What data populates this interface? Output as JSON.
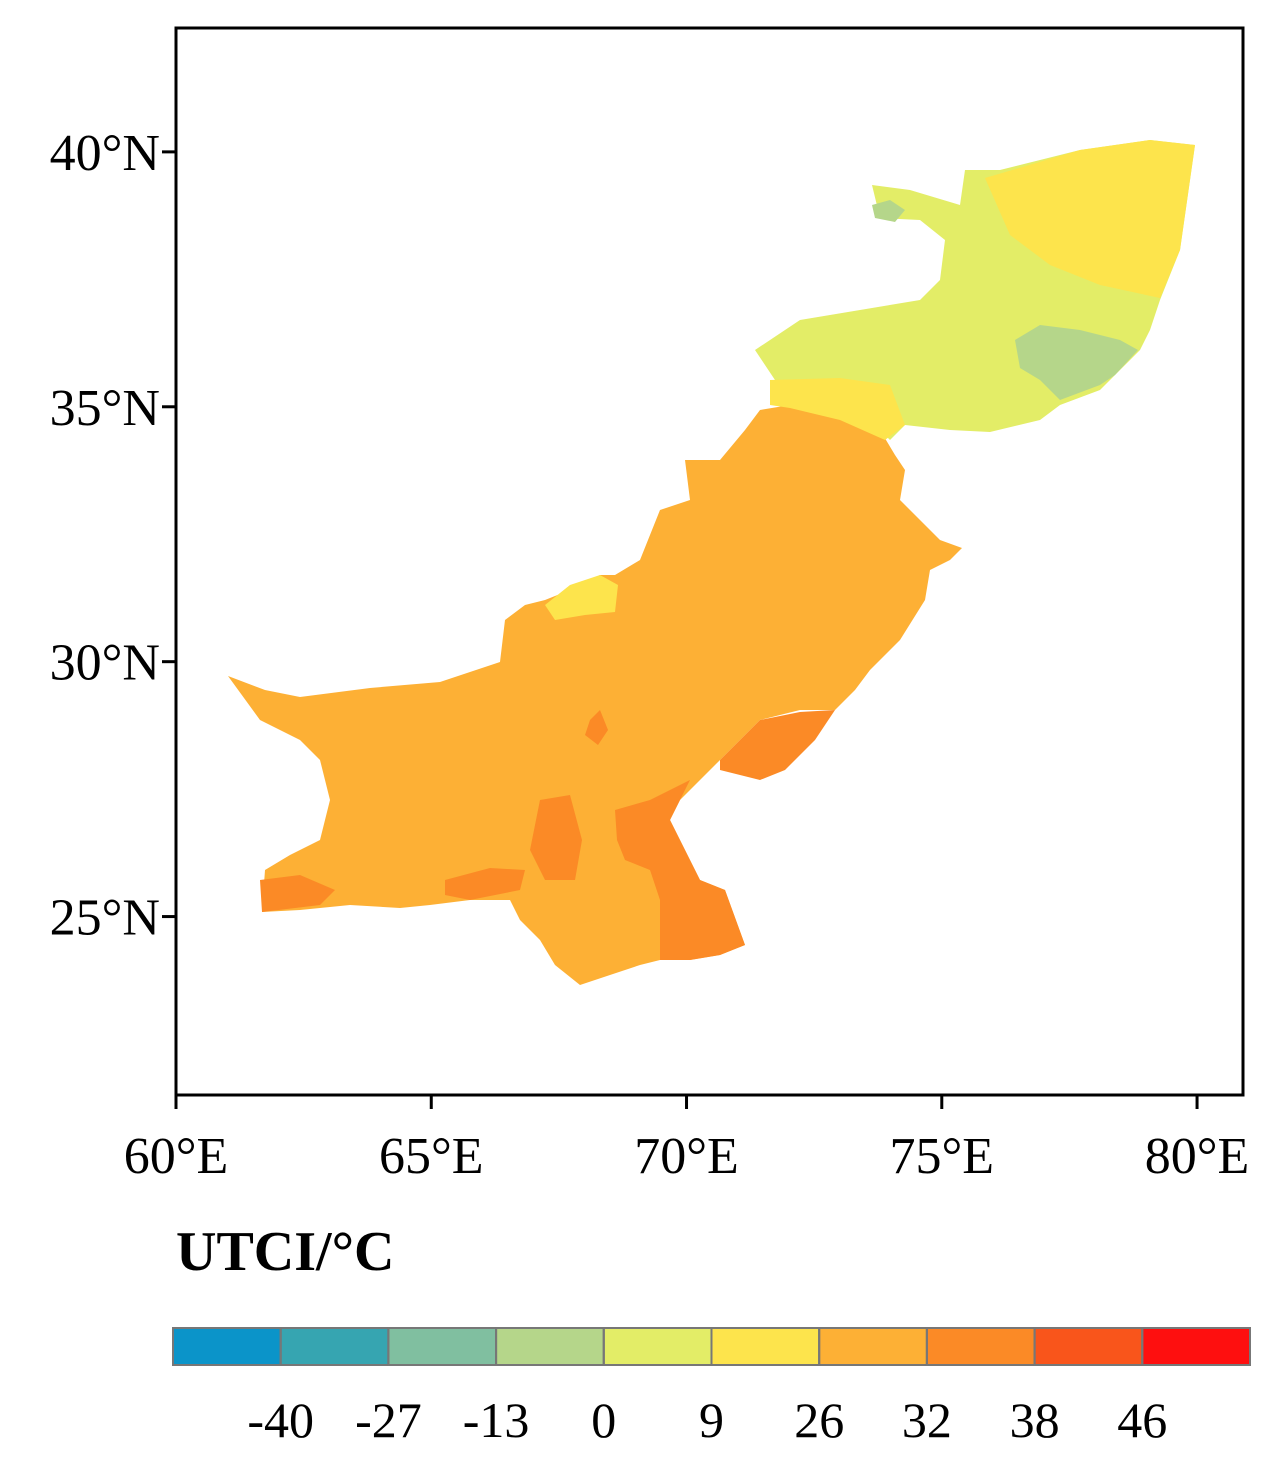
{
  "chart_data": {
    "type": "map",
    "xlim": [
      60,
      80.9
    ],
    "ylim": [
      21.5,
      42.43
    ],
    "xticks": [
      {
        "value": 60,
        "label": "60°E"
      },
      {
        "value": 65,
        "label": "65°E"
      },
      {
        "value": 70,
        "label": "70°E"
      },
      {
        "value": 75,
        "label": "75°E"
      },
      {
        "value": 80,
        "label": "80°E"
      }
    ],
    "yticks": [
      {
        "value": 25,
        "label": "25°N"
      },
      {
        "value": 30,
        "label": "30°N"
      },
      {
        "value": 35,
        "label": "35°N"
      },
      {
        "value": 40,
        "label": "40°N"
      }
    ],
    "colorbar": {
      "title": "UTCI/°C",
      "colors": [
        "#0b94c9",
        "#36a5b1",
        "#80bfa0",
        "#b5d68a",
        "#e3ed67",
        "#fde44c",
        "#fdb035",
        "#fb8a26",
        "#f9551b",
        "#fe0f0f"
      ],
      "ticks": [
        -40,
        -27,
        -13,
        0,
        9,
        26,
        32,
        38,
        46
      ]
    }
  }
}
